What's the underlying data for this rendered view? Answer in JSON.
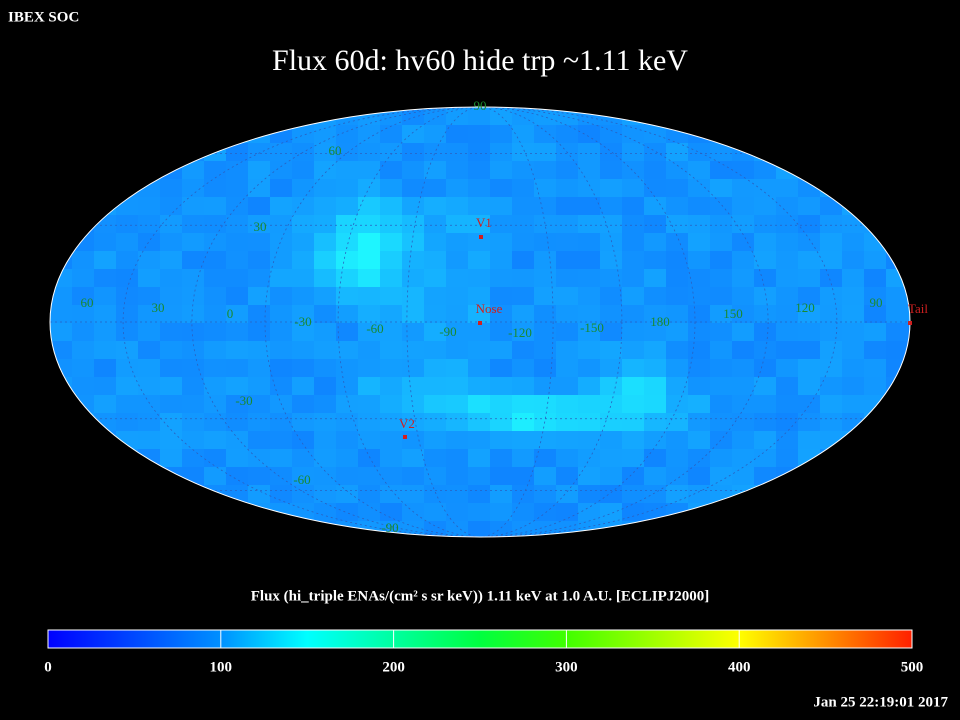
{
  "header": {
    "label": "IBEX SOC",
    "timestamp": "Jan 25 22:19:01 2017"
  },
  "title": "Flux   60d: hv60 hide trp ~1.11 keV",
  "map": {
    "grid_labels": [
      "90",
      "60",
      "30",
      "60",
      "30",
      "0",
      "-30",
      "-60",
      "-90",
      "-120",
      "-150",
      "180",
      "150",
      "120",
      "90",
      "-30",
      "-60",
      "-90"
    ],
    "markers": [
      "V1",
      "Nose",
      "V2",
      "Tail"
    ]
  },
  "colorbar": {
    "caption": "Flux (hi_triple ENAs/(cm² s sr keV))  1.11 keV at 1.0 A.U. [ECLIPJ2000]",
    "range": [
      0,
      500
    ],
    "ticks": [
      0,
      100,
      200,
      300,
      400,
      500
    ]
  }
}
